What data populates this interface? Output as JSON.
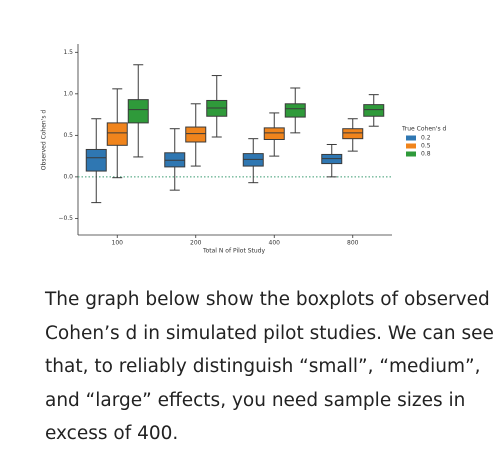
{
  "chart_data": {
    "type": "box",
    "x_label": "Total N of Pilot Study",
    "y_label": "Observed Cohen's d",
    "categories": [
      "100",
      "200",
      "400",
      "800"
    ],
    "legend_title": "True Cohen's d",
    "legend_position": "right",
    "series": [
      {
        "name": "0.2",
        "color": "#2f77b2",
        "values": [
          {
            "low": -0.31,
            "q1": 0.07,
            "median": 0.23,
            "q3": 0.33,
            "high": 0.7
          },
          {
            "low": -0.16,
            "q1": 0.12,
            "median": 0.2,
            "q3": 0.29,
            "high": 0.58
          },
          {
            "low": -0.07,
            "q1": 0.13,
            "median": 0.21,
            "q3": 0.28,
            "high": 0.46
          },
          {
            "low": 0.0,
            "q1": 0.16,
            "median": 0.22,
            "q3": 0.27,
            "high": 0.39
          }
        ]
      },
      {
        "name": "0.5",
        "color": "#f0841c",
        "values": [
          {
            "low": -0.01,
            "q1": 0.38,
            "median": 0.53,
            "q3": 0.65,
            "high": 1.06
          },
          {
            "low": 0.13,
            "q1": 0.42,
            "median": 0.52,
            "q3": 0.6,
            "high": 0.88
          },
          {
            "low": 0.25,
            "q1": 0.45,
            "median": 0.53,
            "q3": 0.59,
            "high": 0.77
          },
          {
            "low": 0.31,
            "q1": 0.46,
            "median": 0.53,
            "q3": 0.58,
            "high": 0.7
          }
        ]
      },
      {
        "name": "0.8",
        "color": "#2f9a3a",
        "values": [
          {
            "low": 0.24,
            "q1": 0.65,
            "median": 0.81,
            "q3": 0.93,
            "high": 1.35
          },
          {
            "low": 0.48,
            "q1": 0.73,
            "median": 0.83,
            "q3": 0.92,
            "high": 1.22
          },
          {
            "low": 0.53,
            "q1": 0.72,
            "median": 0.82,
            "q3": 0.88,
            "high": 1.07
          },
          {
            "low": 0.61,
            "q1": 0.73,
            "median": 0.81,
            "q3": 0.87,
            "high": 0.99
          }
        ]
      }
    ],
    "reference_line": {
      "value": 0,
      "color": "#3a9a70"
    },
    "ylim": [
      -0.7,
      1.6
    ],
    "yticks": [
      {
        "value": -0.5,
        "label": "−0.5"
      },
      {
        "value": 0,
        "label": "0.0"
      },
      0.5,
      {
        "value": 1,
        "label": "1.0"
      },
      {
        "value": 1.5,
        "label": "1.5"
      }
    ]
  },
  "paragraph": {
    "lines": [
      "The graph below show the boxplots of observed",
      "Cohen’s d in simulated pilot studies. We can see",
      "that, to reliably distinguish “small”, “medium”,",
      "and “large” effects, you need sample sizes in",
      "excess of 400."
    ]
  }
}
